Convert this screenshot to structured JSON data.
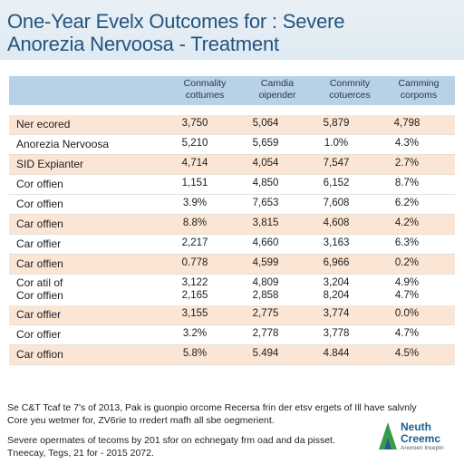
{
  "title": {
    "line1": "One-Year Evelx Outcomes for : Severe",
    "line2": "Anorezia Nervoosa - Treatment"
  },
  "columns": [
    {
      "line1": "Conmality",
      "line2": "cottumes"
    },
    {
      "line1": "Camdia",
      "line2": "oipender"
    },
    {
      "line1": "Conmnity",
      "line2": "cotuerces"
    },
    {
      "line1": "Camming",
      "line2": "corpoms"
    }
  ],
  "rows": [
    {
      "label": "Ner ecored",
      "values": [
        "3,750",
        "5,064",
        "5,879",
        "4,798"
      ],
      "shaded": true
    },
    {
      "label": "Anorezia Nervoosa",
      "values": [
        "5,210",
        "5,659",
        "1.0%",
        "4.3%"
      ],
      "shaded": false
    },
    {
      "label": "SID Expianter",
      "values": [
        "4,714",
        "4,054",
        "7,547",
        "2.7%"
      ],
      "shaded": true
    },
    {
      "label": "Cor offien",
      "values": [
        "1,151",
        "4,850",
        "6,152",
        "8.7%"
      ],
      "shaded": false
    },
    {
      "label": "Cor offien",
      "values": [
        "3.9%",
        "7,653",
        "7,608",
        "6.2%"
      ],
      "shaded": false
    },
    {
      "label": "Car offien",
      "values": [
        "8.8%",
        "3,815",
        "4,608",
        "4.2%"
      ],
      "shaded": true
    },
    {
      "label": "Car offier",
      "values": [
        "2,217",
        "4,660",
        "3,163",
        "6.3%"
      ],
      "shaded": false
    },
    {
      "label": "Car offien",
      "values": [
        "0.778",
        "4,599",
        "6,966",
        "0.2%"
      ],
      "shaded": true
    },
    {
      "label": "Cor atil of",
      "label2": "Cor offien",
      "values": [
        "3,122",
        "4,809",
        "3,204",
        "4.9%"
      ],
      "values2": [
        "2,165",
        "2,858",
        "8,204",
        "4.7%"
      ],
      "shaded": false
    },
    {
      "label": "Car offier",
      "values": [
        "3,155",
        "2,775",
        "3,774",
        "0.0%"
      ],
      "shaded": true
    },
    {
      "label": "Cor offier",
      "values": [
        "3.2%",
        "2,778",
        "3,778",
        "4.7%"
      ],
      "shaded": false
    },
    {
      "label": "Car offion",
      "values": [
        "5.8%",
        "5.494",
        "4.844",
        "4.5%"
      ],
      "shaded": true
    }
  ],
  "notes": {
    "n1": "Se C&T Tcaf te 7's of 2013, Pak is guonpio orcome Recersa frin der etsv ergets of Ill have salvnly",
    "n2": "Core yeu wetmer for, ZV6rie to rredert mafh all sbe oegmerient.",
    "n3": "Severe opermates of tecoms by 201 sfor on echnegaty frm oad and da pisset.",
    "n4": "Tneecay, Tegs, 21 for - 2015 2072."
  },
  "logo": {
    "line1": "Neuth",
    "line2": "Creemc",
    "line3": "Anoroen Inceptn",
    "colors": {
      "green": "#3a9b46",
      "blue": "#1f5d8c"
    }
  },
  "colors": {
    "title_text": "#24547e",
    "header_bg": "#b9d1e6",
    "shade_row": "#fbe6d6"
  }
}
